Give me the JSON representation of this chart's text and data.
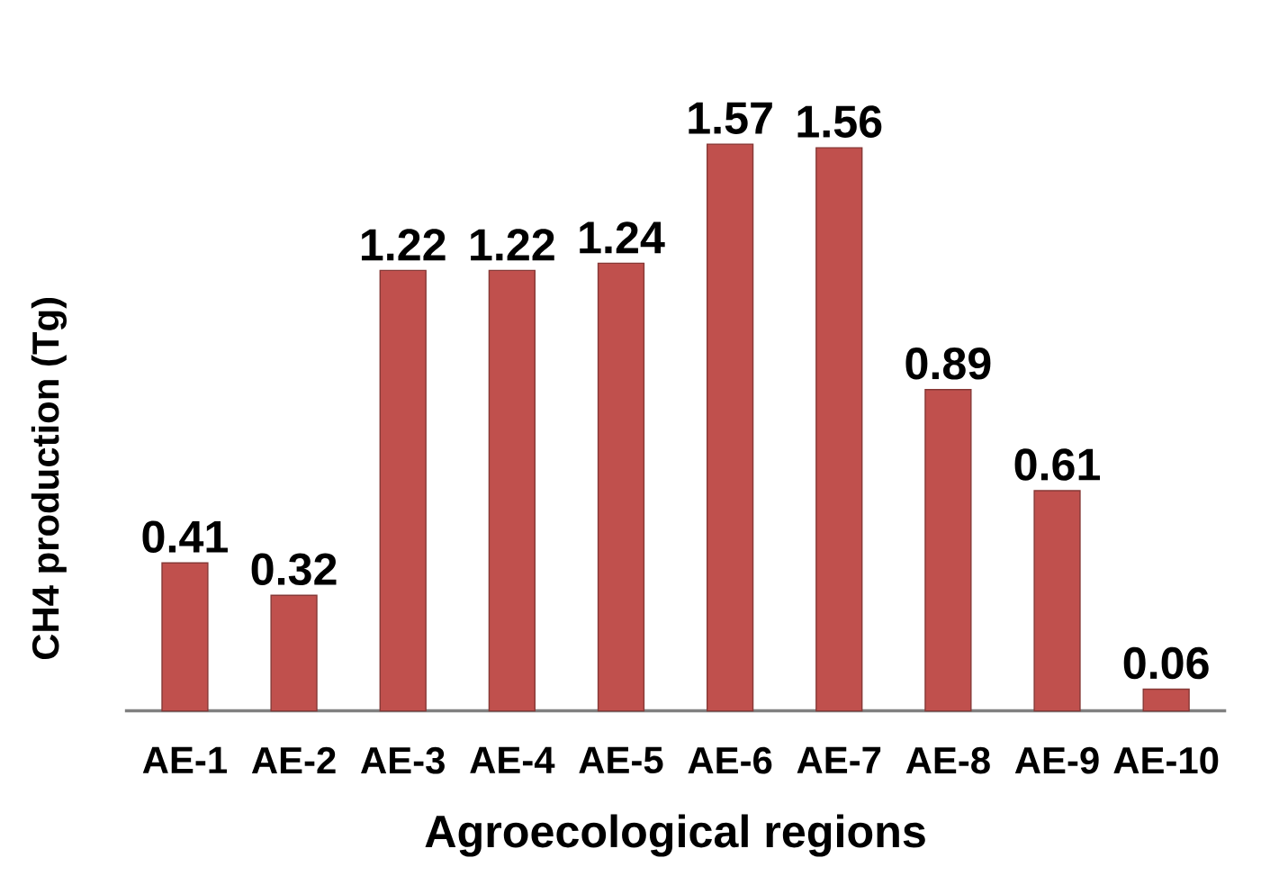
{
  "chart_data": {
    "type": "bar",
    "xlabel": "Agroecological regions",
    "ylabel": "CH4 production (Tg)",
    "categories": [
      "AE-1",
      "AE-2",
      "AE-3",
      "AE-4",
      "AE-5",
      "AE-6",
      "AE-7",
      "AE-8",
      "AE-9",
      "AE-10"
    ],
    "values": [
      0.41,
      0.32,
      1.22,
      1.22,
      1.24,
      1.57,
      1.56,
      0.89,
      0.61,
      0.06
    ],
    "color": "#c0504d",
    "data_labels": true
  }
}
